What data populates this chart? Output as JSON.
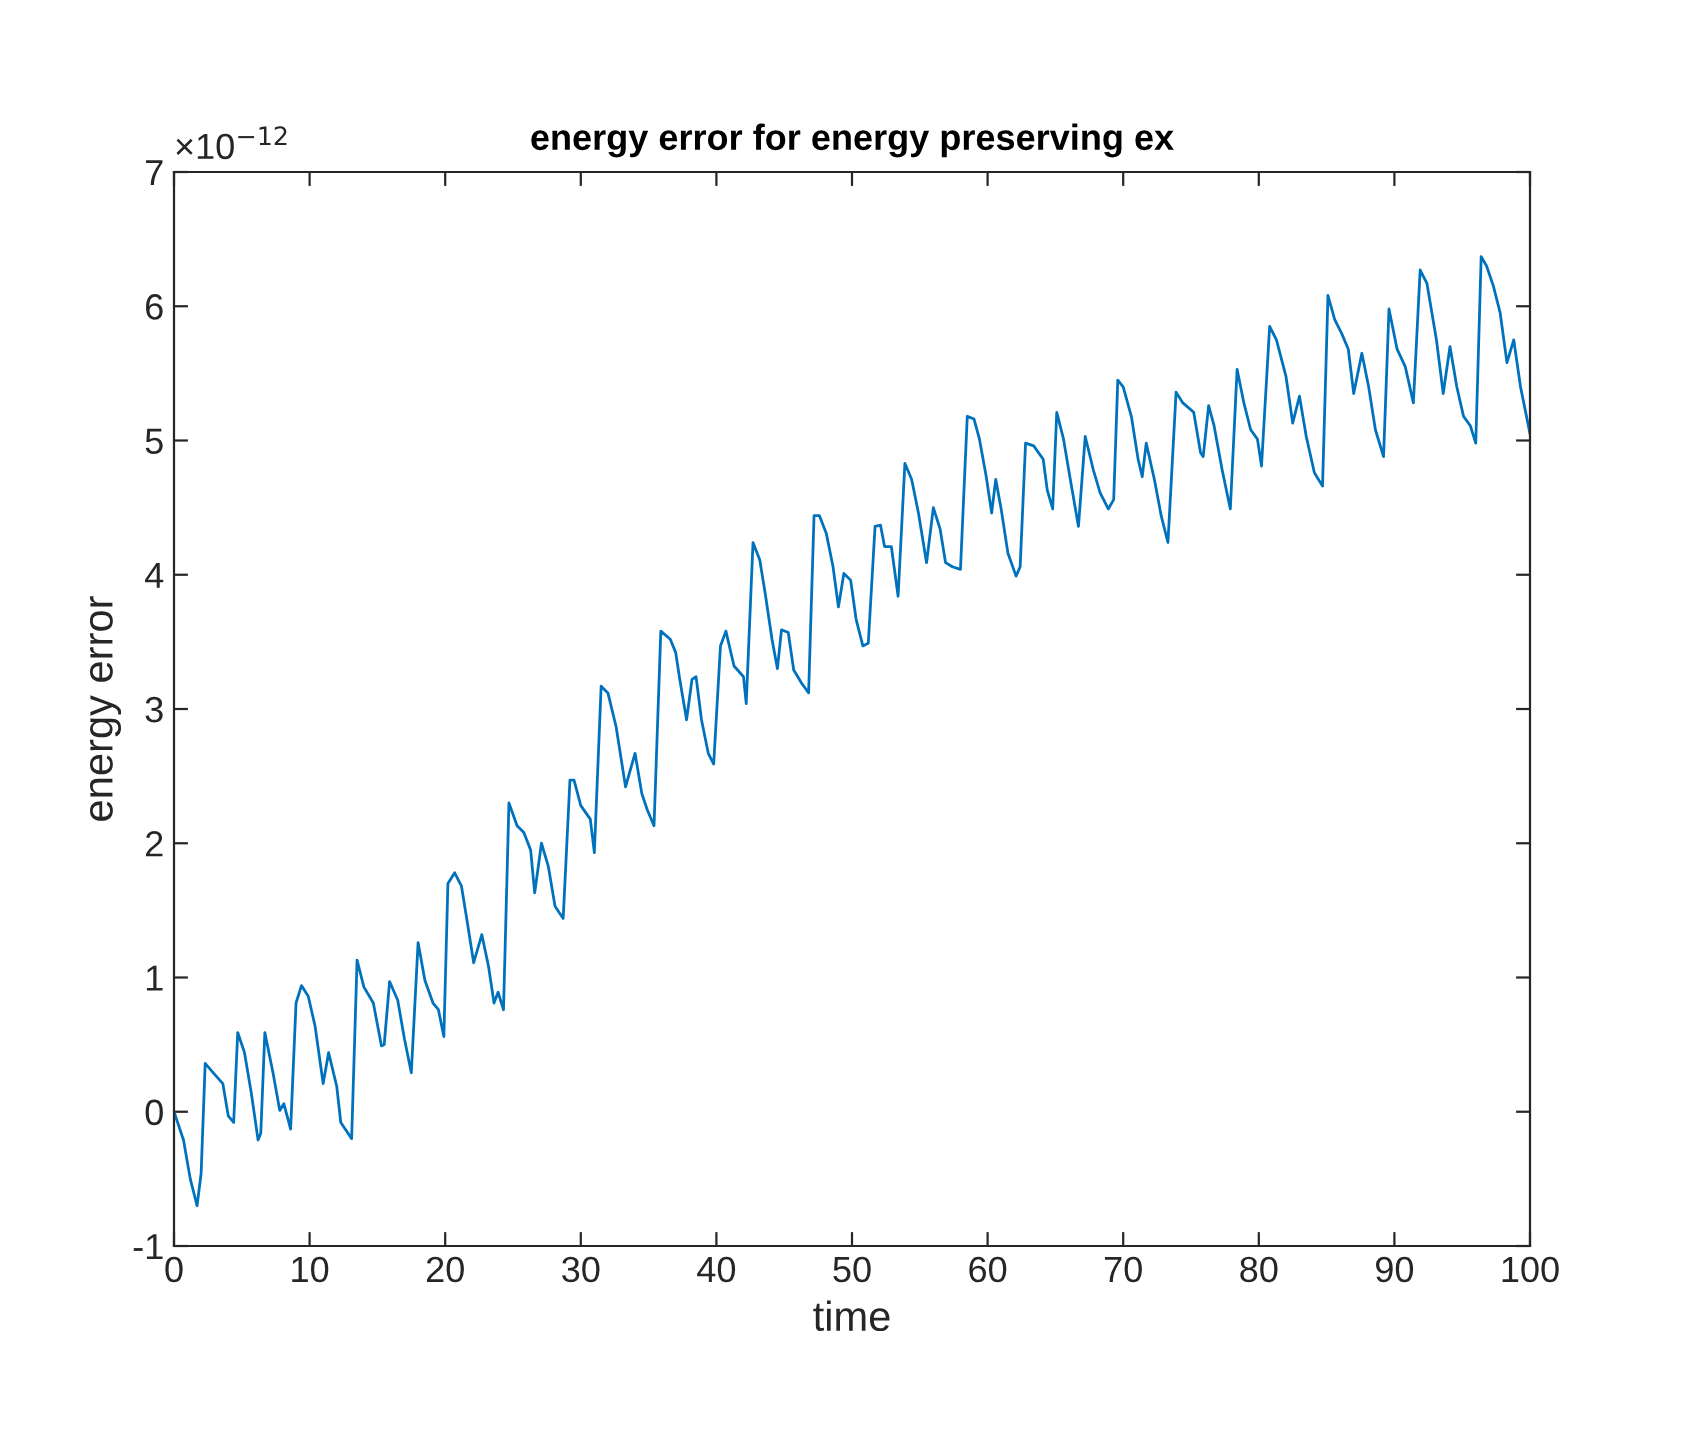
{
  "chart_data": {
    "type": "line",
    "title": "energy error for energy preserving ex",
    "xlabel": "time",
    "ylabel": "energy error",
    "annotations": [
      "×10$^{−12}$"
    ],
    "xlim": [
      0,
      100
    ],
    "xticks": [
      0,
      10,
      20,
      30,
      40,
      50,
      60,
      70,
      80,
      90,
      100
    ],
    "ylim": [
      -1,
      7
    ],
    "yticks": [
      -1,
      0,
      1,
      2,
      3,
      4,
      5,
      6,
      7
    ],
    "line_style": "solid",
    "marker": "none",
    "series": [
      {
        "color": "#0072bd",
        "x": [
          0,
          0.7,
          1.2,
          1.7,
          2.0,
          2.3,
          2.9,
          3.6,
          4.0,
          4.4,
          4.7,
          5.2,
          5.7,
          6.2,
          6.4,
          6.7,
          7.3,
          7.8,
          8.1,
          8.6,
          9.0,
          9.4,
          9.9,
          10.4,
          11.0,
          11.4,
          12.0,
          12.3,
          13.1,
          13.5,
          14.0,
          14.7,
          15.3,
          15.5,
          15.9,
          16.5,
          17.0,
          17.5,
          18.0,
          18.5,
          19.1,
          19.5,
          19.9,
          20.2,
          20.7,
          21.2,
          21.6,
          22.1,
          22.7,
          23.2,
          23.6,
          23.9,
          24.3,
          24.7,
          25.3,
          25.8,
          26.3,
          26.6,
          27.1,
          27.6,
          28.1,
          28.7,
          29.2,
          29.5,
          30.0,
          30.7,
          31.0,
          31.5,
          32.0,
          32.6,
          33.3,
          34.0,
          34.5,
          34.9,
          35.4,
          35.9,
          36.6,
          37.0,
          37.3,
          37.8,
          38.2,
          38.5,
          38.9,
          39.4,
          39.8,
          40.3,
          40.7,
          41.3,
          42.0,
          42.2,
          42.7,
          43.2,
          43.6,
          44.1,
          44.5,
          44.8,
          45.3,
          45.7,
          46.3,
          46.8,
          47.2,
          47.6,
          48.1,
          48.6,
          49.0,
          49.4,
          49.9,
          50.3,
          50.8,
          51.2,
          51.7,
          52.1,
          52.4,
          52.9,
          53.4,
          53.9,
          54.4,
          54.9,
          55.5,
          56.0,
          56.5,
          56.9,
          57.4,
          58.0,
          58.5,
          59.0,
          59.4,
          59.9,
          60.3,
          60.6,
          61.0,
          61.5,
          62.1,
          62.4,
          62.8,
          63.4,
          64.1,
          64.4,
          64.8,
          65.1,
          65.6,
          66.1,
          66.7,
          67.2,
          67.8,
          68.3,
          68.9,
          69.3,
          69.6,
          70.0,
          70.6,
          71.1,
          71.4,
          71.7,
          72.3,
          72.8,
          73.3,
          73.9,
          74.4,
          75.2,
          75.7,
          75.9,
          76.3,
          76.7,
          77.3,
          77.9,
          78.4,
          78.9,
          79.4,
          79.9,
          80.2,
          80.8,
          81.3,
          82.0,
          82.5,
          83.0,
          83.5,
          84.1,
          84.7,
          85.1,
          85.6,
          86.1,
          86.6,
          87.0,
          87.6,
          88.1,
          88.6,
          89.2,
          89.6,
          90.2,
          90.8,
          91.4,
          91.9,
          92.4,
          93.1,
          93.6,
          94.1,
          94.6,
          95.1,
          95.6,
          96.0,
          96.4,
          96.8,
          97.3,
          97.8,
          98.3,
          98.8,
          99.3,
          100
        ],
        "values": [
          0.0,
          -0.21,
          -0.5,
          -0.7,
          -0.46,
          0.36,
          0.29,
          0.21,
          -0.03,
          -0.08,
          0.59,
          0.44,
          0.14,
          -0.21,
          -0.16,
          0.59,
          0.29,
          0.01,
          0.06,
          -0.13,
          0.81,
          0.94,
          0.86,
          0.64,
          0.21,
          0.44,
          0.19,
          -0.08,
          -0.2,
          1.13,
          0.93,
          0.81,
          0.49,
          0.5,
          0.97,
          0.83,
          0.54,
          0.29,
          1.26,
          0.98,
          0.81,
          0.76,
          0.56,
          1.7,
          1.78,
          1.68,
          1.43,
          1.11,
          1.32,
          1.08,
          0.81,
          0.89,
          0.76,
          2.3,
          2.13,
          2.08,
          1.95,
          1.63,
          2.0,
          1.83,
          1.53,
          1.44,
          2.47,
          2.47,
          2.28,
          2.18,
          1.93,
          3.17,
          3.12,
          2.87,
          2.42,
          2.67,
          2.37,
          2.25,
          2.13,
          3.58,
          3.52,
          3.42,
          3.22,
          2.92,
          3.22,
          3.24,
          2.92,
          2.67,
          2.59,
          3.47,
          3.58,
          3.32,
          3.24,
          3.04,
          4.24,
          4.11,
          3.86,
          3.52,
          3.3,
          3.59,
          3.57,
          3.29,
          3.19,
          3.12,
          4.44,
          4.44,
          4.31,
          4.06,
          3.76,
          4.01,
          3.96,
          3.67,
          3.47,
          3.49,
          4.36,
          4.37,
          4.21,
          4.21,
          3.84,
          4.83,
          4.71,
          4.46,
          4.09,
          4.5,
          4.34,
          4.09,
          4.06,
          4.04,
          5.18,
          5.16,
          5.01,
          4.73,
          4.46,
          4.71,
          4.49,
          4.16,
          3.99,
          4.06,
          4.98,
          4.96,
          4.86,
          4.63,
          4.49,
          5.21,
          5.01,
          4.71,
          4.36,
          5.03,
          4.78,
          4.61,
          4.49,
          4.56,
          5.45,
          5.4,
          5.18,
          4.86,
          4.73,
          4.98,
          4.71,
          4.44,
          4.24,
          5.36,
          5.28,
          5.21,
          4.91,
          4.88,
          5.26,
          5.11,
          4.78,
          4.49,
          5.53,
          5.28,
          5.08,
          5.01,
          4.81,
          5.85,
          5.75,
          5.48,
          5.13,
          5.33,
          5.03,
          4.76,
          4.66,
          6.08,
          5.9,
          5.8,
          5.68,
          5.35,
          5.65,
          5.4,
          5.08,
          4.88,
          5.98,
          5.68,
          5.55,
          5.28,
          6.27,
          6.17,
          5.75,
          5.35,
          5.7,
          5.4,
          5.18,
          5.11,
          4.98,
          6.37,
          6.3,
          6.15,
          5.95,
          5.58,
          5.75,
          5.4,
          5.05
        ]
      }
    ]
  }
}
